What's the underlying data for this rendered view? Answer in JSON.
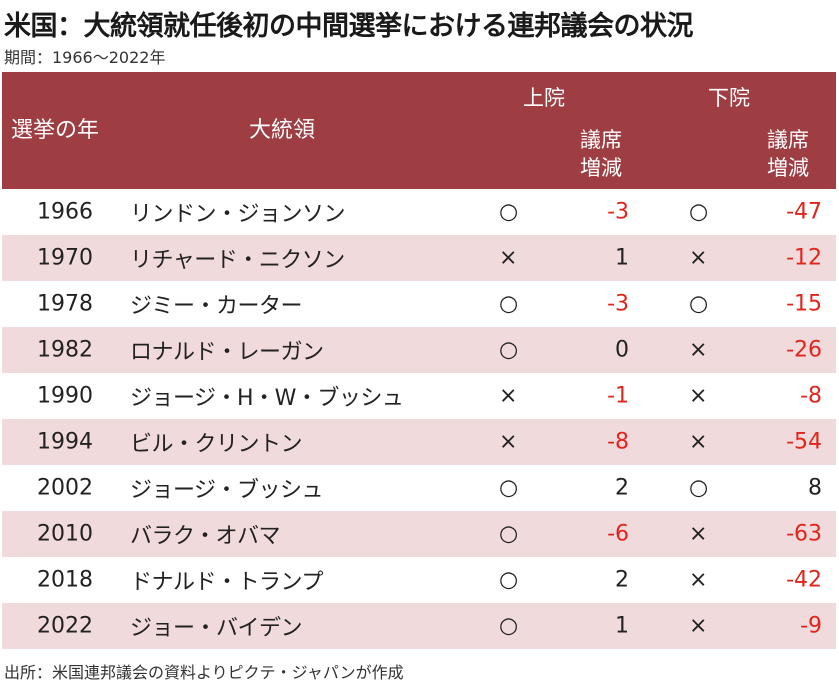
{
  "title": "米国：大統領就任後初の中間選挙における連邦議会の状況",
  "subtitle": "期間：1966～2022年",
  "source": "出所：米国連邦議会の資料よりピクテ・ジャパンが作成",
  "colors": {
    "header_bg": "#9e3d42",
    "row_alt_bg": "#f1dadc",
    "negative_text": "#e1251b"
  },
  "chart_data": {
    "type": "table",
    "columns": {
      "year": "選挙の年",
      "president": "大統領",
      "senate": "上院",
      "house": "下院",
      "seat_change": "議席増減"
    },
    "rows": [
      {
        "year": "1966",
        "president": "リンドン・ジョンソン",
        "senate_mark": "○",
        "senate_change": "-3",
        "house_mark": "○",
        "house_change": "-47"
      },
      {
        "year": "1970",
        "president": "リチャード・ニクソン",
        "senate_mark": "×",
        "senate_change": "1",
        "house_mark": "×",
        "house_change": "-12"
      },
      {
        "year": "1978",
        "president": "ジミー・カーター",
        "senate_mark": "○",
        "senate_change": "-3",
        "house_mark": "○",
        "house_change": "-15"
      },
      {
        "year": "1982",
        "president": "ロナルド・レーガン",
        "senate_mark": "○",
        "senate_change": "0",
        "house_mark": "×",
        "house_change": "-26"
      },
      {
        "year": "1990",
        "president": "ジョージ・H・W・ブッシュ",
        "senate_mark": "×",
        "senate_change": "-1",
        "house_mark": "×",
        "house_change": "-8"
      },
      {
        "year": "1994",
        "president": "ビル・クリントン",
        "senate_mark": "×",
        "senate_change": "-8",
        "house_mark": "×",
        "house_change": "-54"
      },
      {
        "year": "2002",
        "president": "ジョージ・ブッシュ",
        "senate_mark": "○",
        "senate_change": "2",
        "house_mark": "○",
        "house_change": "8"
      },
      {
        "year": "2010",
        "president": "バラク・オバマ",
        "senate_mark": "○",
        "senate_change": "-6",
        "house_mark": "×",
        "house_change": "-63"
      },
      {
        "year": "2018",
        "president": "ドナルド・トランプ",
        "senate_mark": "○",
        "senate_change": "2",
        "house_mark": "×",
        "house_change": "-42"
      },
      {
        "year": "2022",
        "president": "ジョー・バイデン",
        "senate_mark": "○",
        "senate_change": "1",
        "house_mark": "×",
        "house_change": "-9"
      }
    ]
  }
}
